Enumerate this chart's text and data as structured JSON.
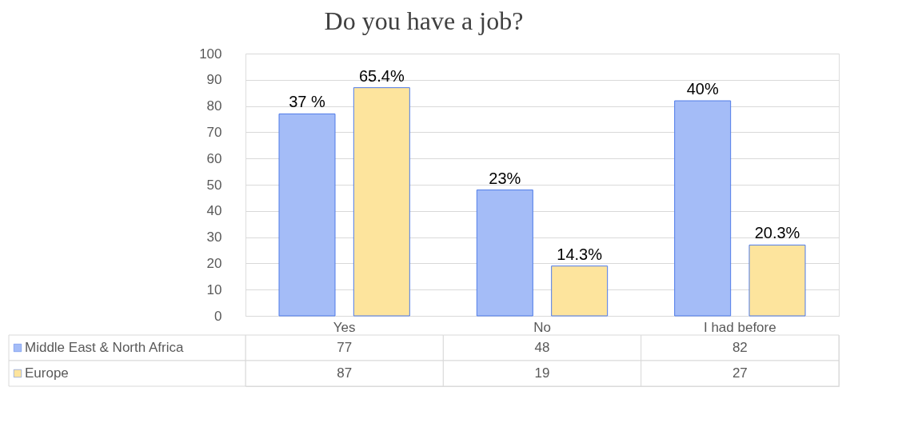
{
  "chart_data": {
    "type": "bar",
    "title": "Do you have a job?",
    "categories": [
      "Yes",
      "No",
      "I had before"
    ],
    "series": [
      {
        "name": "Middle East & North Africa",
        "color": "#a4bcf7",
        "values": [
          77,
          48,
          82
        ]
      },
      {
        "name": "Europe",
        "color": "#fde49d",
        "values": [
          87,
          19,
          27
        ]
      }
    ],
    "annotations": [
      "37 %",
      "23%",
      "40%",
      "65.4%",
      "14.3%",
      "20.3%"
    ],
    "ylim": [
      0,
      100
    ],
    "yticks": [
      0,
      10,
      20,
      30,
      40,
      50,
      60,
      70,
      80,
      90,
      100
    ],
    "grid": "y",
    "legend": "bottom left",
    "data_labels": true
  }
}
